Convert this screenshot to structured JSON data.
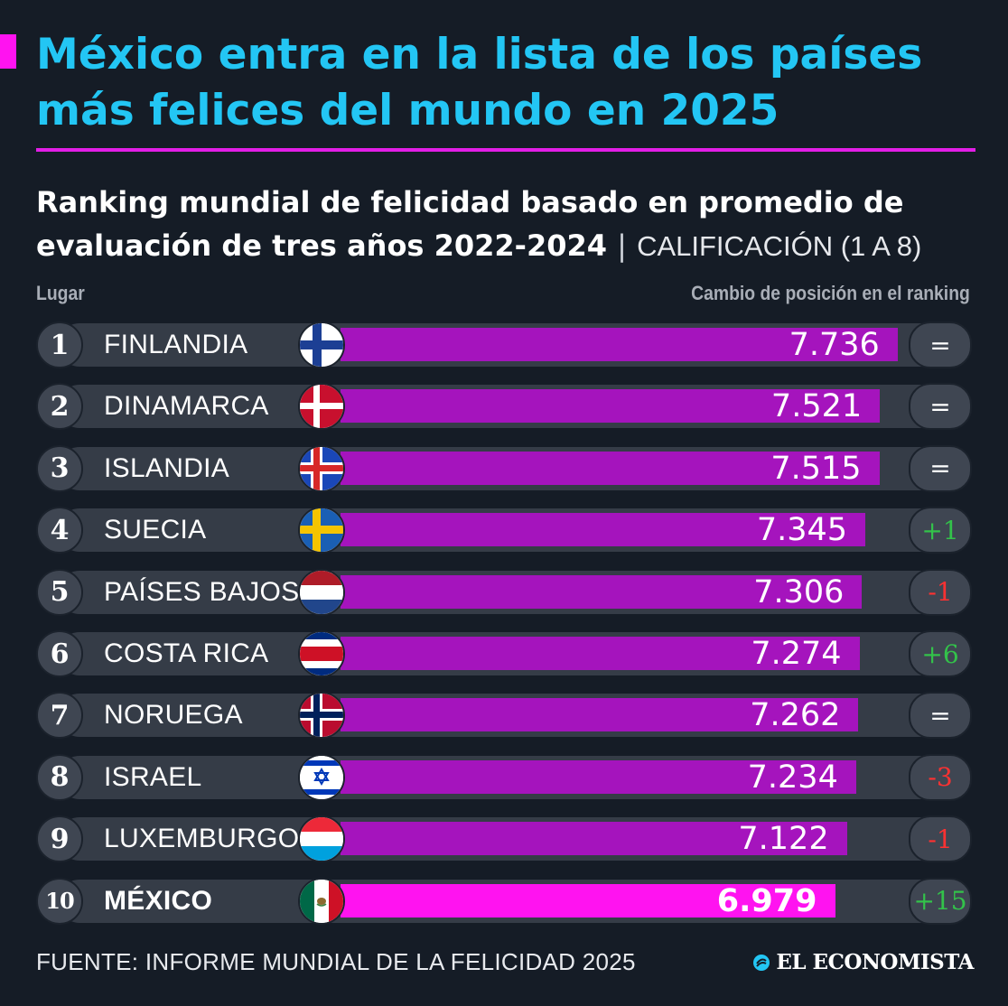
{
  "header": {
    "title": "México entra en la lista de los países más felices del mundo en 2025",
    "subtitle": "Ranking mundial de felicidad basado en promedio de evaluación de tres años 2022-2024",
    "separator": "|",
    "unit_label": "CALIFICACIÓN (1 A 8)",
    "col_left": "Lugar",
    "col_right": "Cambio de posición en el ranking"
  },
  "chart_data": {
    "type": "bar",
    "orientation": "horizontal",
    "title": "México entra en la lista de los países más felices del mundo en 2025",
    "subtitle": "Ranking mundial de felicidad basado en promedio de evaluación de tres años 2022-2024",
    "unit": "CALIFICACIÓN (1 A 8)",
    "ylim": [
      1,
      8
    ],
    "categories": [
      "FINLANDIA",
      "DINAMARCA",
      "ISLANDIA",
      "SUECIA",
      "PAÍSES BAJOS",
      "COSTA RICA",
      "NORUEGA",
      "ISRAEL",
      "LUXEMBURGO",
      "MÉXICO"
    ],
    "values": [
      7.736,
      7.521,
      7.515,
      7.345,
      7.306,
      7.274,
      7.262,
      7.234,
      7.122,
      6.979
    ],
    "rows": [
      {
        "rank": "1",
        "country": "FINLANDIA",
        "value": "7.736",
        "change": "=",
        "flag": "finland-flag-icon"
      },
      {
        "rank": "2",
        "country": "DINAMARCA",
        "value": "7.521",
        "change": "=",
        "flag": "denmark-flag-icon"
      },
      {
        "rank": "3",
        "country": "ISLANDIA",
        "value": "7.515",
        "change": "=",
        "flag": "iceland-flag-icon"
      },
      {
        "rank": "4",
        "country": "SUECIA",
        "value": "7.345",
        "change": "+1",
        "flag": "sweden-flag-icon"
      },
      {
        "rank": "5",
        "country": "PAÍSES BAJOS",
        "value": "7.306",
        "change": "-1",
        "flag": "netherlands-flag-icon"
      },
      {
        "rank": "6",
        "country": "COSTA RICA",
        "value": "7.274",
        "change": "+6",
        "flag": "costa-rica-flag-icon"
      },
      {
        "rank": "7",
        "country": "NORUEGA",
        "value": "7.262",
        "change": "=",
        "flag": "norway-flag-icon"
      },
      {
        "rank": "8",
        "country": "ISRAEL",
        "value": "7.234",
        "change": "-3",
        "flag": "israel-flag-icon"
      },
      {
        "rank": "9",
        "country": "LUXEMBURGO",
        "value": "7.122",
        "change": "-1",
        "flag": "luxembourg-flag-icon"
      },
      {
        "rank": "10",
        "country": "MÉXICO",
        "value": "6.979",
        "change": "+15",
        "flag": "mexico-flag-icon",
        "highlight": true
      }
    ],
    "legend": "none",
    "grid": false
  },
  "colors": {
    "background": "#151c26",
    "title": "#23c6f4",
    "accent": "#ff13f0",
    "bar": "#a514bd",
    "bar_highlight": "#ff13f0",
    "change_up": "#33c24a",
    "change_down": "#ff3131"
  },
  "footer": {
    "source": "FUENTE: INFORME MUNDIAL DE LA FELICIDAD 2025",
    "logo_text": "EL ECONOMISTA",
    "logo_icon": "el-economista-logo-icon"
  }
}
